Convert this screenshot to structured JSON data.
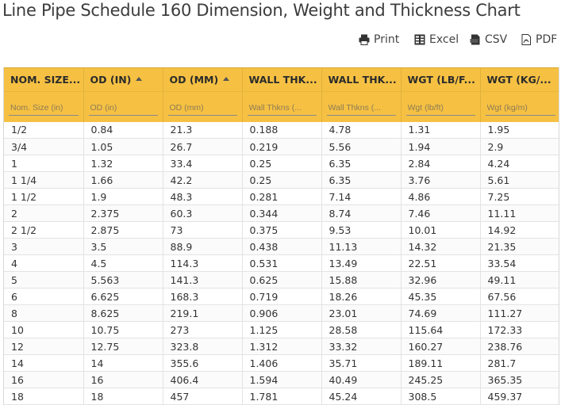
{
  "page": {
    "title": "Line Pipe Schedule 160 Dimension, Weight and Thickness Chart"
  },
  "toolbar": {
    "print_label": "Print",
    "excel_label": "Excel",
    "csv_label": "CSV",
    "pdf_label": "PDF"
  },
  "grid": {
    "columns": [
      {
        "header": "NOM. SIZE...",
        "filter_placeholder": "Nom. Size (in)",
        "sorted": false
      },
      {
        "header": "OD (IN)",
        "filter_placeholder": "OD (in)",
        "sorted": true
      },
      {
        "header": "OD (MM)",
        "filter_placeholder": "OD (mm)",
        "sorted": true
      },
      {
        "header": "WALL THK...",
        "filter_placeholder": "Wall Thkns (...",
        "sorted": false
      },
      {
        "header": "WALL THK...",
        "filter_placeholder": "Wall Thkns (...",
        "sorted": false
      },
      {
        "header": "WGT (LB/F...",
        "filter_placeholder": "Wgt (lb/ft)",
        "sorted": false
      },
      {
        "header": "WGT (KG/...",
        "filter_placeholder": "Wgt (kg/m)",
        "sorted": false
      }
    ],
    "rows": [
      [
        "1/2",
        "0.84",
        "21.3",
        "0.188",
        "4.78",
        "1.31",
        "1.95"
      ],
      [
        "3/4",
        "1.05",
        "26.7",
        "0.219",
        "5.56",
        "1.94",
        "2.9"
      ],
      [
        "1",
        "1.32",
        "33.4",
        "0.25",
        "6.35",
        "2.84",
        "4.24"
      ],
      [
        "1 1/4",
        "1.66",
        "42.2",
        "0.25",
        "6.35",
        "3.76",
        "5.61"
      ],
      [
        "1 1/2",
        "1.9",
        "48.3",
        "0.281",
        "7.14",
        "4.86",
        "7.25"
      ],
      [
        "2",
        "2.375",
        "60.3",
        "0.344",
        "8.74",
        "7.46",
        "11.11"
      ],
      [
        "2 1/2",
        "2.875",
        "73",
        "0.375",
        "9.53",
        "10.01",
        "14.92"
      ],
      [
        "3",
        "3.5",
        "88.9",
        "0.438",
        "11.13",
        "14.32",
        "21.35"
      ],
      [
        "4",
        "4.5",
        "114.3",
        "0.531",
        "13.49",
        "22.51",
        "33.54"
      ],
      [
        "5",
        "5.563",
        "141.3",
        "0.625",
        "15.88",
        "32.96",
        "49.11"
      ],
      [
        "6",
        "6.625",
        "168.3",
        "0.719",
        "18.26",
        "45.35",
        "67.56"
      ],
      [
        "8",
        "8.625",
        "219.1",
        "0.906",
        "23.01",
        "74.69",
        "111.27"
      ],
      [
        "10",
        "10.75",
        "273",
        "1.125",
        "28.58",
        "115.64",
        "172.33"
      ],
      [
        "12",
        "12.75",
        "323.8",
        "1.312",
        "33.32",
        "160.27",
        "238.76"
      ],
      [
        "14",
        "14",
        "355.6",
        "1.406",
        "35.71",
        "189.11",
        "281.7"
      ],
      [
        "16",
        "16",
        "406.4",
        "1.594",
        "40.49",
        "245.25",
        "365.35"
      ],
      [
        "18",
        "18",
        "457",
        "1.781",
        "45.24",
        "308.5",
        "459.37"
      ]
    ]
  },
  "colors": {
    "header_bg": "#f6c143",
    "title_text": "#3c3c3c"
  },
  "icons": [
    "print-icon",
    "excel-icon",
    "csv-icon",
    "pdf-icon",
    "sort-asc-icon"
  ]
}
